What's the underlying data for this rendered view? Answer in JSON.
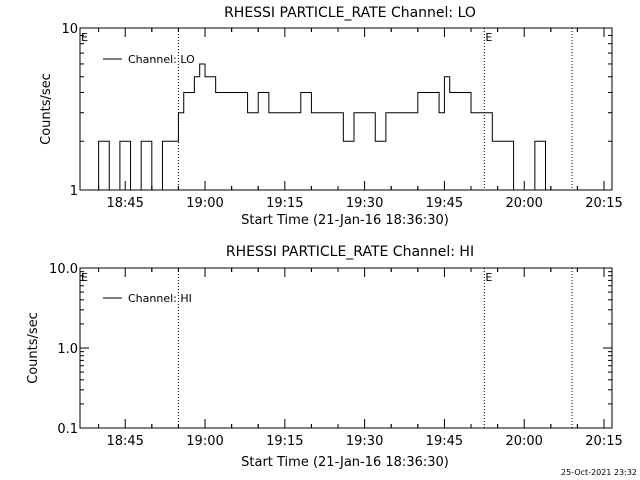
{
  "chart_data": [
    {
      "type": "line",
      "title": "RHESSI PARTICLE_RATE Channel: LO",
      "xlabel": "Start Time (21-Jan-16 18:36:30)",
      "ylabel": "Counts/sec",
      "yscale": "log",
      "ylim": [
        1,
        10
      ],
      "ytick_labels": [
        "1",
        "10"
      ],
      "xlim_minutes_after_start": [
        0,
        100
      ],
      "xtick_labels": [
        "18:45",
        "19:00",
        "19:15",
        "19:30",
        "19:45",
        "20:00",
        "20:15"
      ],
      "legend": "Channel: LO",
      "legend_position": "top-left",
      "grid": false,
      "event_marker_label": "E",
      "event_markers_utc": [
        "18:36:30",
        "19:52:30"
      ],
      "vertical_dotted_lines_utc": [
        "18:55:00",
        "19:52:30",
        "20:09:00"
      ],
      "series": [
        {
          "name": "Channel: LO",
          "x": [
            "18:37",
            "18:38",
            "18:40",
            "18:42",
            "18:44",
            "18:46",
            "18:48",
            "18:50",
            "18:52",
            "18:53",
            "18:54",
            "18:55",
            "18:56",
            "18:57",
            "18:58",
            "18:59",
            "19:00",
            "19:02",
            "19:04",
            "19:06",
            "19:08",
            "19:10",
            "19:12",
            "19:14",
            "19:16",
            "19:18",
            "19:20",
            "19:22",
            "19:24",
            "19:26",
            "19:28",
            "19:30",
            "19:32",
            "19:34",
            "19:36",
            "19:38",
            "19:40",
            "19:42",
            "19:44",
            "19:45",
            "19:46",
            "19:48",
            "19:50",
            "19:52",
            "19:53",
            "19:54",
            "19:56",
            "19:58",
            "20:00",
            "20:02",
            "20:04",
            "20:05"
          ],
          "values": [
            1,
            1,
            2,
            1,
            2,
            1,
            2,
            1,
            2,
            2,
            2,
            3,
            4,
            4,
            5,
            6,
            5,
            4,
            4,
            4,
            3,
            4,
            3,
            3,
            3,
            4,
            3,
            3,
            3,
            2,
            3,
            3,
            2,
            3,
            3,
            3,
            4,
            4,
            3,
            5,
            4,
            4,
            3,
            3,
            3,
            2,
            2,
            1,
            1,
            2,
            1,
            1
          ]
        }
      ]
    },
    {
      "type": "line",
      "title": "RHESSI PARTICLE_RATE Channel: HI",
      "xlabel": "Start Time (21-Jan-16 18:36:30)",
      "ylabel": "Counts/sec",
      "yscale": "log",
      "ylim": [
        0.1,
        10
      ],
      "ytick_labels": [
        "0.1",
        "1.0",
        "10.0"
      ],
      "xlim_minutes_after_start": [
        0,
        100
      ],
      "xtick_labels": [
        "18:45",
        "19:00",
        "19:15",
        "19:30",
        "19:45",
        "20:00",
        "20:15"
      ],
      "legend": "Channel: HI",
      "legend_position": "top-left",
      "grid": false,
      "event_marker_label": "E",
      "event_markers_utc": [
        "18:36:30",
        "19:52:30"
      ],
      "vertical_dotted_lines_utc": [
        "18:55:00",
        "19:52:30",
        "20:09:00"
      ],
      "series": [
        {
          "name": "Channel: HI",
          "x": [],
          "values": []
        }
      ]
    }
  ],
  "timestamp": "25-Oct-2021 23:32"
}
